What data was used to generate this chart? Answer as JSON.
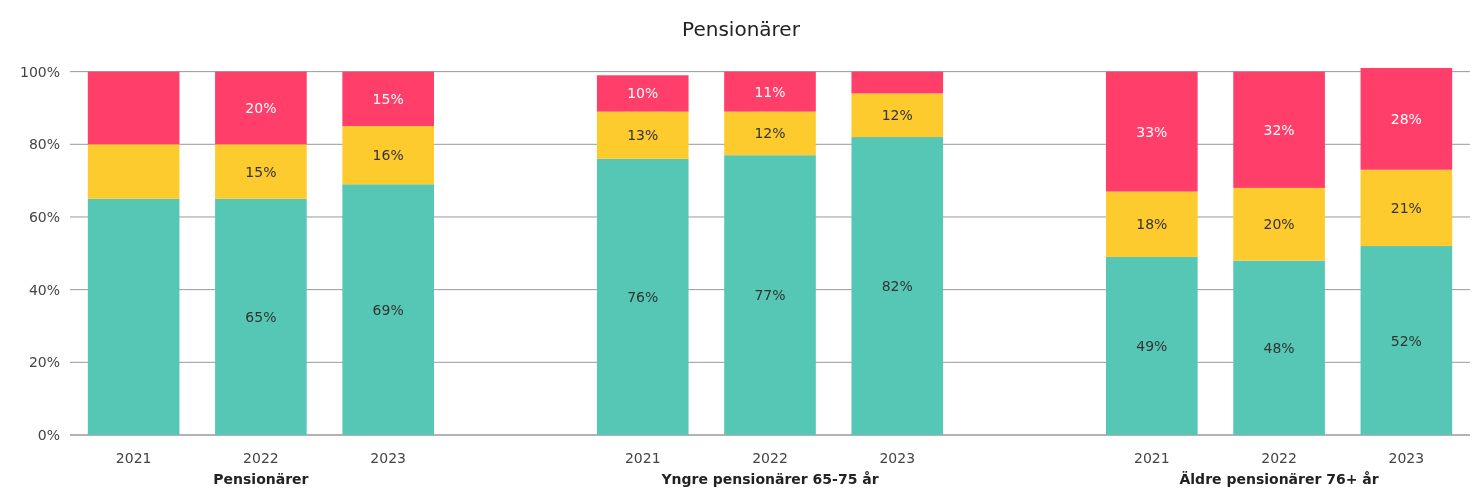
{
  "chart_data": {
    "type": "bar",
    "title": "Pensionärer",
    "stacked": true,
    "grid": "y",
    "categories": [
      "2021",
      "2022",
      "2023",
      null,
      "2021",
      "2022",
      "2023",
      null,
      "2021",
      "2022",
      "2023"
    ],
    "ylim": [
      0,
      101
    ],
    "yticks": [
      {
        "value": 0,
        "label": "0%"
      },
      {
        "value": 20,
        "label": "20%"
      },
      {
        "value": 40,
        "label": "40%"
      },
      {
        "value": 60,
        "label": "60%"
      },
      {
        "value": 80,
        "label": "80%"
      },
      {
        "value": 100,
        "label": "100%"
      }
    ],
    "series": [
      {
        "color": "#56c7b4",
        "values": [
          65,
          65,
          69,
          null,
          76,
          77,
          82,
          null,
          49,
          48,
          52
        ],
        "value_labels": [
          null,
          "65%",
          "69%",
          null,
          "76%",
          "77%",
          "82%",
          null,
          "49%",
          "48%",
          "52%"
        ]
      },
      {
        "color": "#fecb2f",
        "values": [
          15,
          15,
          16,
          null,
          13,
          12,
          12,
          null,
          18,
          20,
          21
        ],
        "value_labels": [
          null,
          "15%",
          "16%",
          null,
          "13%",
          "12%",
          "12%",
          null,
          "18%",
          "20%",
          "21%"
        ]
      },
      {
        "color": "#ff3e6a",
        "values": [
          20,
          20,
          15,
          null,
          10,
          11,
          6,
          null,
          33,
          32,
          28
        ],
        "value_labels": [
          null,
          "20%",
          "15%",
          null,
          "10%",
          "11%",
          null,
          null,
          "33%",
          "32%",
          "28%"
        ]
      }
    ],
    "annotations": [
      "Pensionärer",
      "Yngre pensionärer 65-75 år",
      "Äldre pensionärer 76+ år"
    ]
  }
}
